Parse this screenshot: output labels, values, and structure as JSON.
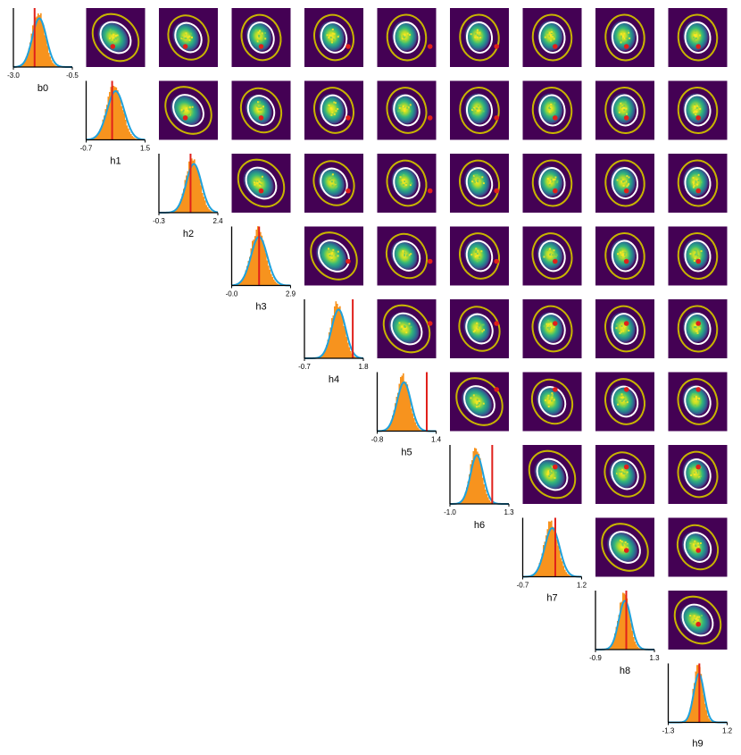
{
  "chart_data": {
    "type": "corner-plot",
    "variables": [
      "b0",
      "h1",
      "h2",
      "h3",
      "h4",
      "h5",
      "h6",
      "h7",
      "h8",
      "h9"
    ],
    "ranges": [
      [
        -3.0,
        -0.5
      ],
      [
        -0.7,
        1.5
      ],
      [
        -0.3,
        2.4
      ],
      [
        -0.0,
        2.9
      ],
      [
        -0.7,
        1.8
      ],
      [
        -0.8,
        1.4
      ],
      [
        -1.0,
        1.3
      ],
      [
        -0.7,
        1.2
      ],
      [
        -0.9,
        1.3
      ],
      [
        -1.3,
        1.2
      ]
    ],
    "tick_labels": [
      [
        "-3.0",
        "-0.5"
      ],
      [
        "-0.7",
        "1.5"
      ],
      [
        "-0.3",
        "2.4"
      ],
      [
        "-0.0",
        "2.9"
      ],
      [
        "-0.7",
        "1.8"
      ],
      [
        "-0.8",
        "1.4"
      ],
      [
        "-1.0",
        "1.3"
      ],
      [
        "-0.7",
        "1.2"
      ],
      [
        "-0.9",
        "1.3"
      ],
      [
        "-1.3",
        "1.2"
      ]
    ],
    "true_values": [
      -2.1,
      0.27,
      1.15,
      1.35,
      1.35,
      1.05,
      0.65,
      0.35,
      0.25,
      0.02
    ],
    "posterior_means": [
      -1.9,
      0.4,
      1.3,
      1.35,
      0.75,
      0.2,
      0.05,
      0.25,
      0.2,
      0.0
    ],
    "posterior_sds": [
      0.3,
      0.32,
      0.35,
      0.4,
      0.3,
      0.26,
      0.25,
      0.24,
      0.23,
      0.22
    ],
    "correlation_tilt": "positive",
    "colors": {
      "histogram": "#f7931e",
      "gaussian": "#1fa2dc",
      "true_value": "#e0201b",
      "heatmap_background": "#440154",
      "ellipse_inner": "#ffffff",
      "ellipse_outer": "#c8b400"
    }
  }
}
